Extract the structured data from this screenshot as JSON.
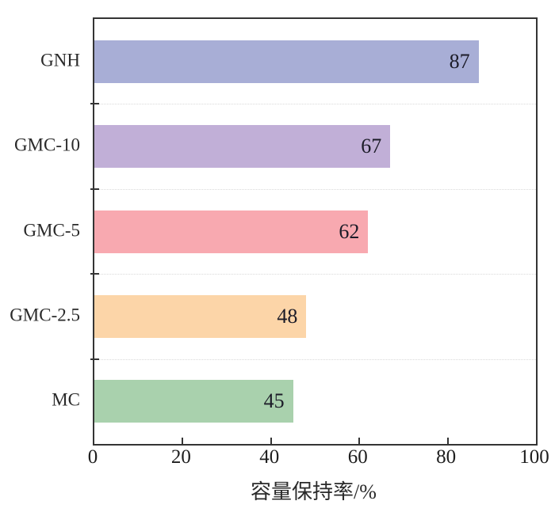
{
  "chart_data": {
    "type": "bar",
    "orientation": "horizontal",
    "title": "",
    "xlabel": "容量保持率/%",
    "ylabel": "",
    "categories": [
      "GNH",
      "GMC-10",
      "GMC-5",
      "GMC-2.5",
      "MC"
    ],
    "values": [
      87,
      67,
      62,
      48,
      45
    ],
    "bar_colors": [
      "#a8aed6",
      "#c1afd7",
      "#f8a9b0",
      "#fcd5a8",
      "#a9d1ad"
    ],
    "value_labels": [
      "87",
      "67",
      "62",
      "48",
      "45"
    ],
    "xlim": [
      0,
      100
    ],
    "xticks": [
      0,
      20,
      40,
      60,
      80,
      100
    ],
    "xtick_labels": [
      "0",
      "20",
      "40",
      "60",
      "80",
      "100"
    ],
    "grid": "faint dotted horizontal lines at category boundaries",
    "legend": "none",
    "frame_color": "#343434",
    "value_label_color": "#1c1c28"
  }
}
